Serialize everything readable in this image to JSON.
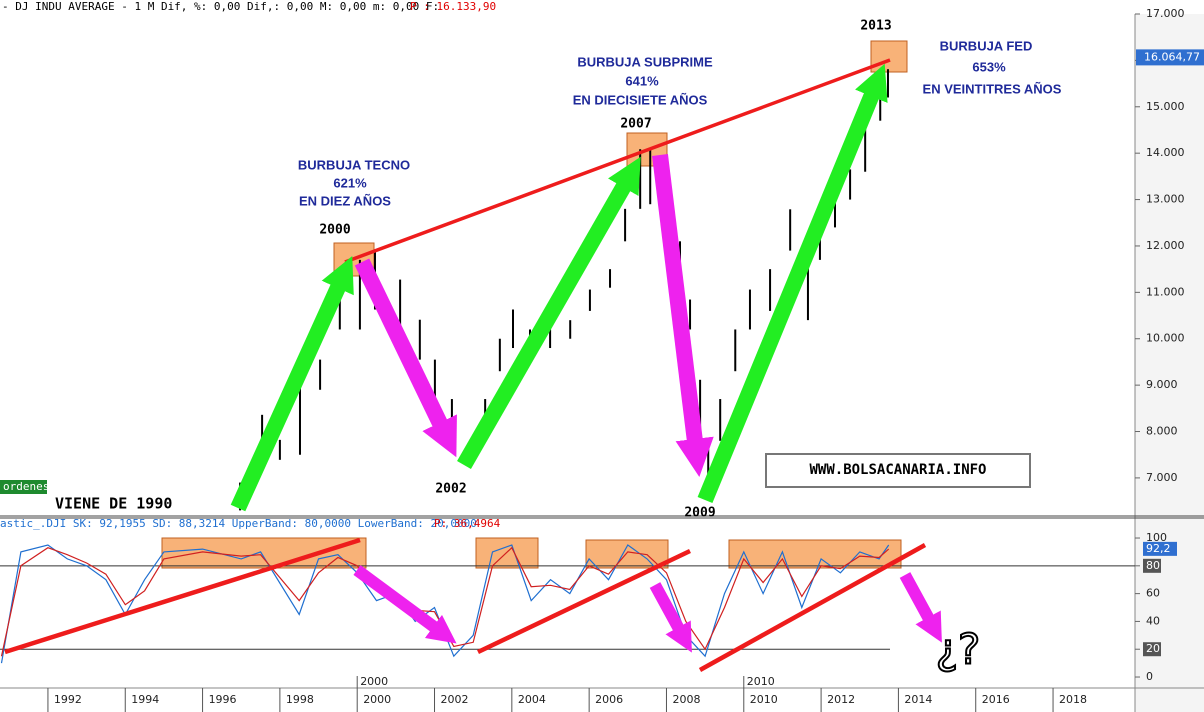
{
  "header": {
    "title": "- DJ INDU AVERAGE -  1 M Dif, %: 0,00 Dif,: 0,00 M: 0,00 m: 0,00 F:",
    "price": "P : 16.133,90",
    "oscillator": "astic_.DJI SK: 92,1955 SD: 88,3214 UpperBand: 80,0000 LowerBand: 20,0000",
    "oscillator_price": "P: 36,4964",
    "button": "ordenes"
  },
  "annotations": {
    "tecno": [
      "BURBUJA TECNO",
      "621%",
      "EN DIEZ AÑOS"
    ],
    "tecno_year": "2000",
    "subprime": [
      "BURBUJA SUBPRIME",
      "641%",
      "EN DIECISIETE AÑOS"
    ],
    "subprime_year": "2007",
    "fed": [
      "BURBUJA FED",
      "653%",
      "EN VEINTITRES AÑOS"
    ],
    "fed_year": "2013",
    "low_2002": "2002",
    "low_2009": "2009",
    "origin": "VIENE DE 1990",
    "site": "WWW.BOLSACANARIA.INFO",
    "question": "¿?"
  },
  "chart_data": [
    {
      "type": "range",
      "color": "#000000",
      "x": [
        1996.97,
        1997.54,
        1998.0,
        1998.52,
        1999.04,
        1999.55,
        2000.07,
        2000.46,
        2001.11,
        2001.62,
        2002.01,
        2002.45,
        2002.92,
        2003.31,
        2003.69,
        2004.03,
        2004.47,
        2004.99,
        2005.51,
        2006.02,
        2006.54,
        2006.93,
        2007.32,
        2007.58,
        2007.96,
        2008.35,
        2008.61,
        2008.87,
        2009.08,
        2009.39,
        2009.78,
        2010.16,
        2010.68,
        2011.2,
        2011.66,
        2011.97,
        2012.36,
        2012.75,
        2013.14,
        2013.53,
        2013.73
      ],
      "low": [
        6300,
        7400,
        7390,
        7500,
        8900,
        10200,
        10200,
        10630,
        10200,
        9550,
        8700,
        7600,
        7300,
        8000,
        9300,
        9800,
        9800,
        9800,
        10000,
        10600,
        11100,
        12100,
        12800,
        12900,
        12300,
        11000,
        10200,
        7800,
        6900,
        7800,
        9300,
        10200,
        10600,
        11900,
        10400,
        11700,
        12400,
        13000,
        13600,
        14700,
        15200
      ],
      "high": [
        6900,
        8360,
        7820,
        9115,
        9550,
        11060,
        11700,
        11925,
        11275,
        10410,
        9550,
        8700,
        7800,
        8700,
        10000,
        10630,
        10200,
        10200,
        10400,
        11060,
        11500,
        12800,
        14085,
        14100,
        13220,
        12100,
        10845,
        9115,
        7800,
        8700,
        10200,
        11060,
        11500,
        12790,
        12140,
        12350,
        13000,
        13650,
        14515,
        15380,
        15810
      ],
      "xlim": [
        1990.76,
        2020.12
      ],
      "ylim": [
        6179,
        17000
      ],
      "xticks": [
        1992,
        1994,
        1996,
        1998,
        2000,
        2002,
        2004,
        2006,
        2008,
        2010,
        2012,
        2014,
        2016,
        2018
      ],
      "yticks": [
        {
          "value": 7000,
          "label": "7.000"
        },
        {
          "value": 8000,
          "label": "8.000"
        },
        {
          "value": 9000,
          "label": "9.000"
        },
        {
          "value": 10000,
          "label": "10.000"
        },
        {
          "value": 11000,
          "label": "11.000"
        },
        {
          "value": 12000,
          "label": "12.000"
        },
        {
          "value": 13000,
          "label": "13.000"
        },
        {
          "value": 14000,
          "label": "14.000"
        },
        {
          "value": 15000,
          "label": "15.000"
        },
        {
          "value": 16000,
          "label": "16.000"
        },
        {
          "value": 17000,
          "label": "17.000"
        }
      ],
      "last_value": {
        "value": 16064.77,
        "label": "16.064,77"
      }
    },
    {
      "type": "line",
      "x": [
        1990.8,
        1991.3,
        1992,
        1992.5,
        1993,
        1993.5,
        1994,
        1994.5,
        1995,
        1996,
        1997,
        1997.5,
        1998.5,
        1999,
        1999.5,
        2000,
        2000.5,
        2001,
        2001.5,
        2002,
        2002.5,
        2003,
        2003.5,
        2004,
        2004.5,
        2005,
        2005.5,
        2006,
        2006.5,
        2007,
        2007.5,
        2008,
        2008.5,
        2009,
        2009.5,
        2010,
        2010.5,
        2011,
        2011.5,
        2012,
        2012.5,
        2013,
        2013.5,
        2013.75
      ],
      "series": [
        {
          "color": "#1f6fd0",
          "values": [
            10,
            90,
            95,
            85,
            80,
            70,
            45,
            70,
            90,
            92,
            85,
            90,
            45,
            85,
            88,
            75,
            55,
            60,
            40,
            50,
            15,
            30,
            90,
            95,
            55,
            70,
            60,
            85,
            70,
            95,
            85,
            70,
            30,
            15,
            60,
            90,
            60,
            90,
            50,
            85,
            75,
            90,
            85,
            95
          ]
        },
        {
          "color": "#d02020",
          "values": [
            15,
            80,
            93,
            88,
            82,
            74,
            52,
            62,
            85,
            90,
            87,
            88,
            55,
            75,
            86,
            80,
            62,
            58,
            48,
            47,
            22,
            25,
            80,
            93,
            65,
            66,
            63,
            80,
            74,
            90,
            88,
            75,
            40,
            20,
            50,
            85,
            68,
            85,
            58,
            80,
            78,
            87,
            86,
            92
          ]
        }
      ],
      "xlim": [
        1990.76,
        2020.12
      ],
      "ylim": [
        -7.9,
        114.4
      ],
      "yticks": [
        0,
        20,
        40,
        60,
        80,
        100
      ],
      "bands": [
        20,
        80
      ],
      "period_labels": [
        2000,
        2010
      ],
      "last_value": {
        "value": 92.2,
        "label": "92,2"
      }
    }
  ]
}
